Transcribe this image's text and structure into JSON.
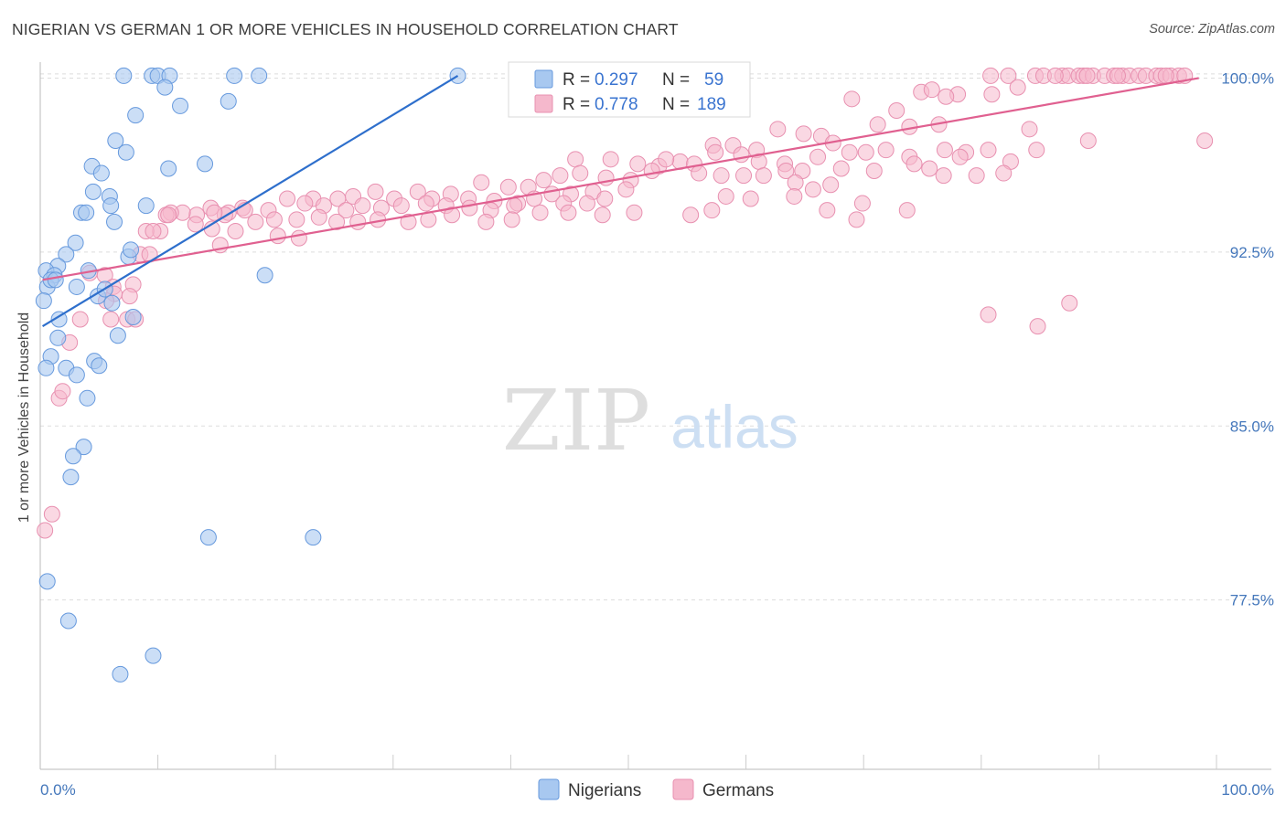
{
  "title": "NIGERIAN VS GERMAN 1 OR MORE VEHICLES IN HOUSEHOLD CORRELATION CHART",
  "source": "Source: ZipAtlas.com",
  "watermark": {
    "zip": "ZIP",
    "atlas": "atlas"
  },
  "colors": {
    "nigerians_fill": "#a8c8f0",
    "nigerians_stroke": "#6699dd",
    "nigerians_line": "#2e6fcc",
    "germans_fill": "#f5b8cc",
    "germans_stroke": "#e890b0",
    "germans_line": "#e06090",
    "tick_label": "#4477bb",
    "grid": "#dddddd"
  },
  "chart_data": {
    "type": "scatter",
    "title": "NIGERIAN VS GERMAN 1 OR MORE VEHICLES IN HOUSEHOLD CORRELATION CHART",
    "xlabel": "",
    "ylabel": "1 or more Vehicles in Household",
    "x_ticks": [
      "0.0%",
      "100.0%"
    ],
    "y_ticks": [
      "100.0%",
      "92.5%",
      "85.0%",
      "77.5%"
    ],
    "xlim": [
      0,
      100
    ],
    "ylim": [
      70.2,
      101.2
    ],
    "grid": true,
    "legend_position": "top-center",
    "stats": [
      {
        "r_label": "R =",
        "r": "0.297",
        "n_label": "N =",
        "n": "59"
      },
      {
        "r_label": "R =",
        "r": "0.778",
        "n_label": "N =",
        "n": "189"
      }
    ],
    "series": [
      {
        "name": "Nigerians",
        "trend": [
          [
            0.2,
            89.3
          ],
          [
            35.5,
            100.1
          ]
        ],
        "points": [
          [
            7.1,
            100.1
          ],
          [
            9.5,
            100.1
          ],
          [
            10.0,
            100.1
          ],
          [
            11.0,
            100.1
          ],
          [
            16.5,
            100.1
          ],
          [
            18.6,
            100.1
          ],
          [
            35.5,
            100.1
          ],
          [
            10.6,
            99.6
          ],
          [
            11.9,
            98.8
          ],
          [
            16.0,
            99.0
          ],
          [
            8.1,
            98.4
          ],
          [
            6.4,
            97.3
          ],
          [
            7.3,
            96.8
          ],
          [
            4.4,
            96.2
          ],
          [
            10.9,
            96.1
          ],
          [
            14.0,
            96.3
          ],
          [
            5.2,
            95.9
          ],
          [
            4.5,
            95.1
          ],
          [
            5.9,
            94.9
          ],
          [
            6.0,
            94.5
          ],
          [
            9.0,
            94.5
          ],
          [
            3.5,
            94.2
          ],
          [
            3.9,
            94.2
          ],
          [
            6.3,
            93.8
          ],
          [
            3.0,
            92.9
          ],
          [
            7.5,
            92.3
          ],
          [
            2.2,
            92.4
          ],
          [
            7.7,
            92.6
          ],
          [
            1.5,
            91.9
          ],
          [
            0.5,
            91.7
          ],
          [
            1.2,
            91.5
          ],
          [
            4.1,
            91.7
          ],
          [
            0.6,
            91.0
          ],
          [
            0.9,
            91.3
          ],
          [
            1.3,
            91.3
          ],
          [
            3.1,
            91.0
          ],
          [
            19.1,
            91.5
          ],
          [
            4.9,
            90.6
          ],
          [
            5.5,
            90.9
          ],
          [
            0.3,
            90.4
          ],
          [
            6.1,
            90.3
          ],
          [
            7.9,
            89.7
          ],
          [
            1.6,
            89.6
          ],
          [
            6.6,
            88.9
          ],
          [
            1.5,
            88.8
          ],
          [
            0.9,
            88.0
          ],
          [
            2.2,
            87.5
          ],
          [
            0.5,
            87.5
          ],
          [
            4.6,
            87.8
          ],
          [
            5.0,
            87.6
          ],
          [
            3.1,
            87.2
          ],
          [
            4.0,
            86.2
          ],
          [
            3.7,
            84.1
          ],
          [
            2.8,
            83.7
          ],
          [
            2.6,
            82.8
          ],
          [
            14.3,
            80.2
          ],
          [
            23.2,
            80.2
          ],
          [
            0.6,
            78.3
          ],
          [
            2.4,
            76.6
          ],
          [
            9.6,
            75.1
          ],
          [
            6.8,
            74.3
          ]
        ]
      },
      {
        "name": "Germans",
        "trend": [
          [
            0.2,
            91.3
          ],
          [
            98.5,
            100.0
          ]
        ],
        "points": [
          [
            80.8,
            100.1
          ],
          [
            82.3,
            100.1
          ],
          [
            84.6,
            100.1
          ],
          [
            85.3,
            100.1
          ],
          [
            86.9,
            100.1
          ],
          [
            87.4,
            100.1
          ],
          [
            88.3,
            100.1
          ],
          [
            88.7,
            100.1
          ],
          [
            89.5,
            100.1
          ],
          [
            90.5,
            100.1
          ],
          [
            91.3,
            100.1
          ],
          [
            92.0,
            100.1
          ],
          [
            92.6,
            100.1
          ],
          [
            93.4,
            100.1
          ],
          [
            94.0,
            100.1
          ],
          [
            94.9,
            100.1
          ],
          [
            95.3,
            100.1
          ],
          [
            96.1,
            100.1
          ],
          [
            96.8,
            100.1
          ],
          [
            97.3,
            100.1
          ],
          [
            95.7,
            100.1
          ],
          [
            91.6,
            100.1
          ],
          [
            89.0,
            100.1
          ],
          [
            86.3,
            100.1
          ],
          [
            83.1,
            99.6
          ],
          [
            74.9,
            99.4
          ],
          [
            69.0,
            99.1
          ],
          [
            75.8,
            99.5
          ],
          [
            78.0,
            99.3
          ],
          [
            80.9,
            99.3
          ],
          [
            77.0,
            99.2
          ],
          [
            72.8,
            98.6
          ],
          [
            71.2,
            98.0
          ],
          [
            73.9,
            97.9
          ],
          [
            76.4,
            98.0
          ],
          [
            84.1,
            97.8
          ],
          [
            62.7,
            97.8
          ],
          [
            64.9,
            97.6
          ],
          [
            66.4,
            97.5
          ],
          [
            67.4,
            97.2
          ],
          [
            57.2,
            97.1
          ],
          [
            58.9,
            97.1
          ],
          [
            60.9,
            96.9
          ],
          [
            54.4,
            96.4
          ],
          [
            50.8,
            96.3
          ],
          [
            52.6,
            96.2
          ],
          [
            48.5,
            96.5
          ],
          [
            45.5,
            96.5
          ],
          [
            57.4,
            96.8
          ],
          [
            59.6,
            96.7
          ],
          [
            61.1,
            96.4
          ],
          [
            63.3,
            96.3
          ],
          [
            66.1,
            96.6
          ],
          [
            68.8,
            96.8
          ],
          [
            70.2,
            96.8
          ],
          [
            71.9,
            96.9
          ],
          [
            73.9,
            96.6
          ],
          [
            76.9,
            96.9
          ],
          [
            78.7,
            96.8
          ],
          [
            80.6,
            96.9
          ],
          [
            82.5,
            96.4
          ],
          [
            84.7,
            96.9
          ],
          [
            89.1,
            97.3
          ],
          [
            99.0,
            97.3
          ],
          [
            52.0,
            96.0
          ],
          [
            53.2,
            96.5
          ],
          [
            55.6,
            96.3
          ],
          [
            56.0,
            95.9
          ],
          [
            57.9,
            95.8
          ],
          [
            59.8,
            95.8
          ],
          [
            61.5,
            95.8
          ],
          [
            63.4,
            96.0
          ],
          [
            64.8,
            96.0
          ],
          [
            68.1,
            96.1
          ],
          [
            70.9,
            96.0
          ],
          [
            42.8,
            95.6
          ],
          [
            44.2,
            95.8
          ],
          [
            45.9,
            95.9
          ],
          [
            48.1,
            95.7
          ],
          [
            50.2,
            95.6
          ],
          [
            64.2,
            95.5
          ],
          [
            65.7,
            95.2
          ],
          [
            67.2,
            95.4
          ],
          [
            74.3,
            96.3
          ],
          [
            75.6,
            96.1
          ],
          [
            76.8,
            95.8
          ],
          [
            81.9,
            95.9
          ],
          [
            79.6,
            95.8
          ],
          [
            78.2,
            96.6
          ],
          [
            37.5,
            95.5
          ],
          [
            39.8,
            95.3
          ],
          [
            41.5,
            95.3
          ],
          [
            43.5,
            95.0
          ],
          [
            45.1,
            95.0
          ],
          [
            47.0,
            95.1
          ],
          [
            49.8,
            95.2
          ],
          [
            48.0,
            94.8
          ],
          [
            46.5,
            94.6
          ],
          [
            44.5,
            94.6
          ],
          [
            42.0,
            94.8
          ],
          [
            40.6,
            94.6
          ],
          [
            38.6,
            94.7
          ],
          [
            36.4,
            94.8
          ],
          [
            34.9,
            95.0
          ],
          [
            33.3,
            94.8
          ],
          [
            32.1,
            95.1
          ],
          [
            30.1,
            94.8
          ],
          [
            28.5,
            95.1
          ],
          [
            26.6,
            94.9
          ],
          [
            25.3,
            94.8
          ],
          [
            23.2,
            94.8
          ],
          [
            21.0,
            94.8
          ],
          [
            22.5,
            94.6
          ],
          [
            24.1,
            94.5
          ],
          [
            26.0,
            94.3
          ],
          [
            27.4,
            94.5
          ],
          [
            29.0,
            94.4
          ],
          [
            30.7,
            94.5
          ],
          [
            32.8,
            94.6
          ],
          [
            34.5,
            94.5
          ],
          [
            36.5,
            94.4
          ],
          [
            38.3,
            94.3
          ],
          [
            40.3,
            94.5
          ],
          [
            42.5,
            94.2
          ],
          [
            44.9,
            94.2
          ],
          [
            47.8,
            94.1
          ],
          [
            50.5,
            94.2
          ],
          [
            55.3,
            94.1
          ],
          [
            58.3,
            94.9
          ],
          [
            60.4,
            94.8
          ],
          [
            64.1,
            94.9
          ],
          [
            66.9,
            94.3
          ],
          [
            69.9,
            94.6
          ],
          [
            73.7,
            94.3
          ],
          [
            57.1,
            94.3
          ],
          [
            69.4,
            93.9
          ],
          [
            19.4,
            94.3
          ],
          [
            17.2,
            94.4
          ],
          [
            16.0,
            94.2
          ],
          [
            15.7,
            94.1
          ],
          [
            14.5,
            94.4
          ],
          [
            14.8,
            94.2
          ],
          [
            13.3,
            94.1
          ],
          [
            12.1,
            94.2
          ],
          [
            11.1,
            94.2
          ],
          [
            10.7,
            94.1
          ],
          [
            10.9,
            94.1
          ],
          [
            13.2,
            93.7
          ],
          [
            17.4,
            94.3
          ],
          [
            18.3,
            93.8
          ],
          [
            19.9,
            93.9
          ],
          [
            21.8,
            93.9
          ],
          [
            23.7,
            94.0
          ],
          [
            25.2,
            93.8
          ],
          [
            27.0,
            93.8
          ],
          [
            28.7,
            93.9
          ],
          [
            31.3,
            93.8
          ],
          [
            33.0,
            93.9
          ],
          [
            35.0,
            94.1
          ],
          [
            37.9,
            93.8
          ],
          [
            40.1,
            93.9
          ],
          [
            10.2,
            93.4
          ],
          [
            9.0,
            93.4
          ],
          [
            9.6,
            93.4
          ],
          [
            14.6,
            93.5
          ],
          [
            16.6,
            93.4
          ],
          [
            20.2,
            93.2
          ],
          [
            22.0,
            93.1
          ],
          [
            15.3,
            92.8
          ],
          [
            8.5,
            92.4
          ],
          [
            9.3,
            92.4
          ],
          [
            4.2,
            91.6
          ],
          [
            5.5,
            91.5
          ],
          [
            7.9,
            91.1
          ],
          [
            6.2,
            91.0
          ],
          [
            6.3,
            90.7
          ],
          [
            7.6,
            90.6
          ],
          [
            5.6,
            90.4
          ],
          [
            3.4,
            89.6
          ],
          [
            6.0,
            89.6
          ],
          [
            7.4,
            89.6
          ],
          [
            8.1,
            89.6
          ],
          [
            2.5,
            88.6
          ],
          [
            1.6,
            86.2
          ],
          [
            1.9,
            86.5
          ],
          [
            1.0,
            81.2
          ],
          [
            0.4,
            80.5
          ],
          [
            80.6,
            89.8
          ],
          [
            84.8,
            89.3
          ],
          [
            87.5,
            90.3
          ]
        ]
      }
    ]
  },
  "bottom_legend": [
    {
      "label": "Nigerians"
    },
    {
      "label": "Germans"
    }
  ]
}
